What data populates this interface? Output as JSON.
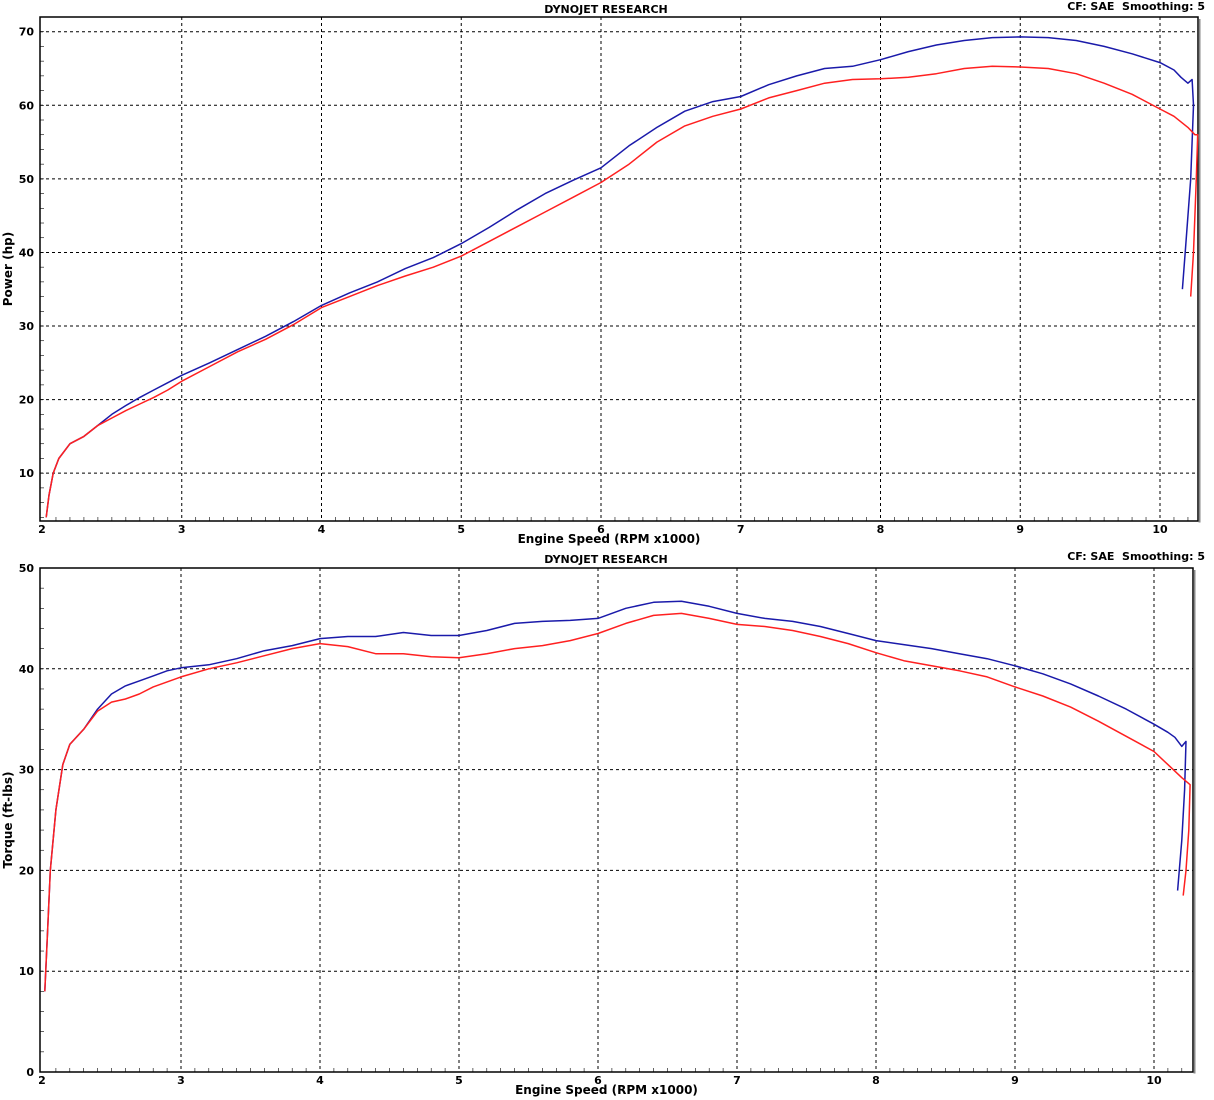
{
  "header": {
    "title": "DYNOJET RESEARCH",
    "settings": "CF: SAE  Smoothing: 5"
  },
  "colors": {
    "run_blue": "#1a1aaa",
    "run_red": "#ff2020",
    "grid": "#000000",
    "frame": "#000000"
  },
  "chart_data": [
    {
      "type": "line",
      "title": "DYNOJET RESEARCH",
      "settings": "CF: SAE  Smoothing: 5",
      "xlabel": "Engine Speed (RPM x1000)",
      "ylabel": "Power (hp)",
      "xlim": [
        2,
        10.27
      ],
      "ylim": [
        3.5,
        72
      ],
      "xticks": [
        2,
        3,
        4,
        5,
        6,
        7,
        8,
        9,
        10
      ],
      "yticks": [
        10,
        20,
        30,
        40,
        50,
        60,
        70
      ],
      "grid": true,
      "series": [
        {
          "color": "#1a1aaa",
          "points": [
            [
              2.03,
              4
            ],
            [
              2.05,
              7
            ],
            [
              2.08,
              10
            ],
            [
              2.12,
              12
            ],
            [
              2.2,
              14
            ],
            [
              2.3,
              15
            ],
            [
              2.4,
              16.5
            ],
            [
              2.5,
              18
            ],
            [
              2.6,
              19.2
            ],
            [
              2.7,
              20.3
            ],
            [
              2.8,
              21.3
            ],
            [
              2.9,
              22.3
            ],
            [
              3.0,
              23.3
            ],
            [
              3.2,
              25
            ],
            [
              3.4,
              26.8
            ],
            [
              3.6,
              28.6
            ],
            [
              3.8,
              30.6
            ],
            [
              4.0,
              32.8
            ],
            [
              4.2,
              34.5
            ],
            [
              4.4,
              36
            ],
            [
              4.6,
              37.8
            ],
            [
              4.8,
              39.3
            ],
            [
              5.0,
              41.2
            ],
            [
              5.2,
              43.4
            ],
            [
              5.4,
              45.8
            ],
            [
              5.6,
              48
            ],
            [
              5.8,
              49.8
            ],
            [
              6.0,
              51.5
            ],
            [
              6.2,
              54.5
            ],
            [
              6.4,
              57
            ],
            [
              6.6,
              59.2
            ],
            [
              6.8,
              60.5
            ],
            [
              7.0,
              61.2
            ],
            [
              7.2,
              62.8
            ],
            [
              7.4,
              64
            ],
            [
              7.6,
              65
            ],
            [
              7.8,
              65.3
            ],
            [
              8.0,
              66.2
            ],
            [
              8.2,
              67.3
            ],
            [
              8.4,
              68.2
            ],
            [
              8.6,
              68.8
            ],
            [
              8.8,
              69.2
            ],
            [
              9.0,
              69.3
            ],
            [
              9.2,
              69.2
            ],
            [
              9.4,
              68.8
            ],
            [
              9.6,
              68
            ],
            [
              9.8,
              67
            ],
            [
              10.0,
              65.8
            ],
            [
              10.1,
              64.8
            ],
            [
              10.15,
              63.8
            ],
            [
              10.2,
              63
            ],
            [
              10.23,
              63.5
            ],
            [
              10.24,
              60
            ],
            [
              10.22,
              50
            ],
            [
              10.18,
              40
            ],
            [
              10.16,
              35
            ]
          ]
        },
        {
          "color": "#ff2020",
          "points": [
            [
              2.03,
              4
            ],
            [
              2.05,
              7
            ],
            [
              2.08,
              10
            ],
            [
              2.12,
              12
            ],
            [
              2.2,
              14
            ],
            [
              2.3,
              15
            ],
            [
              2.4,
              16.5
            ],
            [
              2.5,
              17.5
            ],
            [
              2.6,
              18.5
            ],
            [
              2.7,
              19.4
            ],
            [
              2.8,
              20.3
            ],
            [
              2.9,
              21.3
            ],
            [
              3.0,
              22.5
            ],
            [
              3.2,
              24.5
            ],
            [
              3.4,
              26.5
            ],
            [
              3.6,
              28.2
            ],
            [
              3.8,
              30.2
            ],
            [
              4.0,
              32.5
            ],
            [
              4.2,
              34
            ],
            [
              4.4,
              35.5
            ],
            [
              4.6,
              36.8
            ],
            [
              4.8,
              38
            ],
            [
              5.0,
              39.5
            ],
            [
              5.2,
              41.5
            ],
            [
              5.4,
              43.5
            ],
            [
              5.6,
              45.5
            ],
            [
              5.8,
              47.5
            ],
            [
              6.0,
              49.5
            ],
            [
              6.2,
              52
            ],
            [
              6.4,
              55
            ],
            [
              6.6,
              57.2
            ],
            [
              6.8,
              58.5
            ],
            [
              7.0,
              59.5
            ],
            [
              7.2,
              61
            ],
            [
              7.4,
              62
            ],
            [
              7.6,
              63
            ],
            [
              7.8,
              63.5
            ],
            [
              8.0,
              63.6
            ],
            [
              8.2,
              63.8
            ],
            [
              8.4,
              64.3
            ],
            [
              8.6,
              65
            ],
            [
              8.8,
              65.3
            ],
            [
              9.0,
              65.2
            ],
            [
              9.2,
              65
            ],
            [
              9.4,
              64.3
            ],
            [
              9.6,
              63
            ],
            [
              9.8,
              61.5
            ],
            [
              10.0,
              59.5
            ],
            [
              10.1,
              58.5
            ],
            [
              10.2,
              57
            ],
            [
              10.25,
              56
            ],
            [
              10.27,
              56
            ],
            [
              10.26,
              50
            ],
            [
              10.24,
              40
            ],
            [
              10.22,
              34
            ]
          ]
        }
      ]
    },
    {
      "type": "line",
      "title": "DYNOJET RESEARCH",
      "settings": "CF: SAE  Smoothing: 5",
      "xlabel": "Engine Speed (RPM x1000)",
      "ylabel": "Torque (ft-lbs)",
      "xlim": [
        2,
        10.27
      ],
      "ylim": [
        0,
        50
      ],
      "xticks": [
        2,
        3,
        4,
        5,
        6,
        7,
        8,
        9,
        10
      ],
      "yticks": [
        0,
        10,
        20,
        30,
        40,
        50
      ],
      "grid": true,
      "series": [
        {
          "color": "#1a1aaa",
          "points": [
            [
              2.02,
              8
            ],
            [
              2.04,
              14
            ],
            [
              2.06,
              20
            ],
            [
              2.1,
              26
            ],
            [
              2.15,
              30.5
            ],
            [
              2.2,
              32.5
            ],
            [
              2.3,
              34
            ],
            [
              2.4,
              36
            ],
            [
              2.5,
              37.5
            ],
            [
              2.6,
              38.3
            ],
            [
              2.7,
              38.8
            ],
            [
              2.8,
              39.3
            ],
            [
              2.9,
              39.8
            ],
            [
              3.0,
              40.1
            ],
            [
              3.2,
              40.4
            ],
            [
              3.4,
              41
            ],
            [
              3.6,
              41.8
            ],
            [
              3.8,
              42.3
            ],
            [
              4.0,
              43
            ],
            [
              4.2,
              43.2
            ],
            [
              4.4,
              43.2
            ],
            [
              4.6,
              43.6
            ],
            [
              4.8,
              43.3
            ],
            [
              5.0,
              43.3
            ],
            [
              5.2,
              43.8
            ],
            [
              5.4,
              44.5
            ],
            [
              5.6,
              44.7
            ],
            [
              5.8,
              44.8
            ],
            [
              6.0,
              45
            ],
            [
              6.2,
              46
            ],
            [
              6.4,
              46.6
            ],
            [
              6.6,
              46.7
            ],
            [
              6.8,
              46.2
            ],
            [
              7.0,
              45.5
            ],
            [
              7.2,
              45
            ],
            [
              7.4,
              44.7
            ],
            [
              7.6,
              44.2
            ],
            [
              7.8,
              43.5
            ],
            [
              8.0,
              42.8
            ],
            [
              8.2,
              42.4
            ],
            [
              8.4,
              42
            ],
            [
              8.6,
              41.5
            ],
            [
              8.8,
              41
            ],
            [
              9.0,
              40.3
            ],
            [
              9.2,
              39.5
            ],
            [
              9.4,
              38.5
            ],
            [
              9.6,
              37.3
            ],
            [
              9.8,
              36
            ],
            [
              10.0,
              34.5
            ],
            [
              10.1,
              33.7
            ],
            [
              10.15,
              33.2
            ],
            [
              10.2,
              32.3
            ],
            [
              10.23,
              32.8
            ],
            [
              10.22,
              28
            ],
            [
              10.2,
              23
            ],
            [
              10.17,
              18
            ]
          ]
        },
        {
          "color": "#ff2020",
          "points": [
            [
              2.02,
              8
            ],
            [
              2.04,
              14
            ],
            [
              2.06,
              20
            ],
            [
              2.1,
              26
            ],
            [
              2.15,
              30.5
            ],
            [
              2.2,
              32.5
            ],
            [
              2.3,
              34
            ],
            [
              2.4,
              35.8
            ],
            [
              2.5,
              36.7
            ],
            [
              2.6,
              37
            ],
            [
              2.7,
              37.5
            ],
            [
              2.8,
              38.2
            ],
            [
              2.9,
              38.7
            ],
            [
              3.0,
              39.2
            ],
            [
              3.2,
              40
            ],
            [
              3.4,
              40.6
            ],
            [
              3.6,
              41.3
            ],
            [
              3.8,
              42
            ],
            [
              4.0,
              42.5
            ],
            [
              4.2,
              42.2
            ],
            [
              4.4,
              41.5
            ],
            [
              4.6,
              41.5
            ],
            [
              4.8,
              41.2
            ],
            [
              5.0,
              41.1
            ],
            [
              5.2,
              41.5
            ],
            [
              5.4,
              42
            ],
            [
              5.6,
              42.3
            ],
            [
              5.8,
              42.8
            ],
            [
              6.0,
              43.5
            ],
            [
              6.2,
              44.5
            ],
            [
              6.4,
              45.3
            ],
            [
              6.6,
              45.5
            ],
            [
              6.8,
              45
            ],
            [
              7.0,
              44.4
            ],
            [
              7.2,
              44.2
            ],
            [
              7.4,
              43.8
            ],
            [
              7.6,
              43.2
            ],
            [
              7.8,
              42.5
            ],
            [
              8.0,
              41.6
            ],
            [
              8.2,
              40.8
            ],
            [
              8.4,
              40.3
            ],
            [
              8.6,
              39.8
            ],
            [
              8.8,
              39.2
            ],
            [
              9.0,
              38.2
            ],
            [
              9.2,
              37.3
            ],
            [
              9.4,
              36.2
            ],
            [
              9.6,
              34.8
            ],
            [
              9.8,
              33.3
            ],
            [
              10.0,
              31.8
            ],
            [
              10.1,
              30.5
            ],
            [
              10.2,
              29.2
            ],
            [
              10.26,
              28.5
            ],
            [
              10.25,
              24
            ],
            [
              10.23,
              20
            ],
            [
              10.21,
              17.5
            ]
          ]
        }
      ]
    }
  ]
}
